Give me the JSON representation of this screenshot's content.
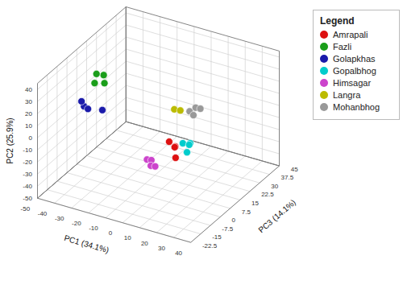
{
  "chart_data": {
    "type": "scatter3d",
    "xlabel": "PC1 (34.1%)",
    "ylabel": "PC2 (25.9%)",
    "zlabel": "PC3 (14.1%)",
    "xlim": [
      -50,
      40
    ],
    "ylim": [
      -50,
      45
    ],
    "zlim": [
      -22.5,
      45
    ],
    "xticks": [
      -50,
      -40,
      -30,
      -20,
      -10,
      0,
      10,
      20,
      30,
      40
    ],
    "yticks": [
      -50,
      -40,
      -30,
      -20,
      -10,
      0,
      10,
      20,
      30,
      40
    ],
    "zticks": [
      -22.5,
      -15,
      -7.5,
      0,
      7.5,
      15,
      22.5,
      30,
      37.5,
      45
    ],
    "grid": true,
    "legend": "right",
    "legend_title": "Legend",
    "series": [
      {
        "name": "Amrapali",
        "color": "#dd1111",
        "x": [
          10,
          12,
          14,
          13
        ],
        "y": [
          0,
          -5,
          -2,
          -13
        ],
        "z": [
          0,
          2,
          -1,
          1
        ]
      },
      {
        "name": "Fazli",
        "color": "#1a9e1a",
        "x": [
          -28,
          -30,
          -33,
          -35
        ],
        "y": [
          33,
          37,
          32,
          35
        ],
        "z": [
          0,
          2,
          -1,
          3
        ]
      },
      {
        "name": "Golapkhas",
        "color": "#1a1aaa",
        "x": [
          -40,
          -43,
          -30,
          -40
        ],
        "y": [
          9,
          10,
          9,
          4
        ],
        "z": [
          0,
          2,
          1,
          3
        ]
      },
      {
        "name": "Gopalbhog",
        "color": "#00cccc",
        "x": [
          18,
          20,
          22,
          21
        ],
        "y": [
          2,
          0,
          -2,
          1
        ],
        "z": [
          0,
          3,
          -2,
          1
        ]
      },
      {
        "name": "Himsagar",
        "color": "#cc44cc",
        "x": [
          -3,
          -2,
          0,
          1
        ],
        "y": [
          -20,
          -22,
          -23,
          -25
        ],
        "z": [
          0,
          2,
          -1,
          1
        ]
      },
      {
        "name": "Langra",
        "color": "#bbbb00",
        "x": [
          13,
          15
        ],
        "y": [
          28,
          26
        ],
        "z": [
          0,
          2
        ]
      },
      {
        "name": "Mohanbhog",
        "color": "#999999",
        "x": [
          22,
          24,
          25,
          26
        ],
        "y": [
          30,
          32,
          29,
          31
        ],
        "z": [
          0,
          2,
          -1,
          3
        ]
      }
    ]
  }
}
